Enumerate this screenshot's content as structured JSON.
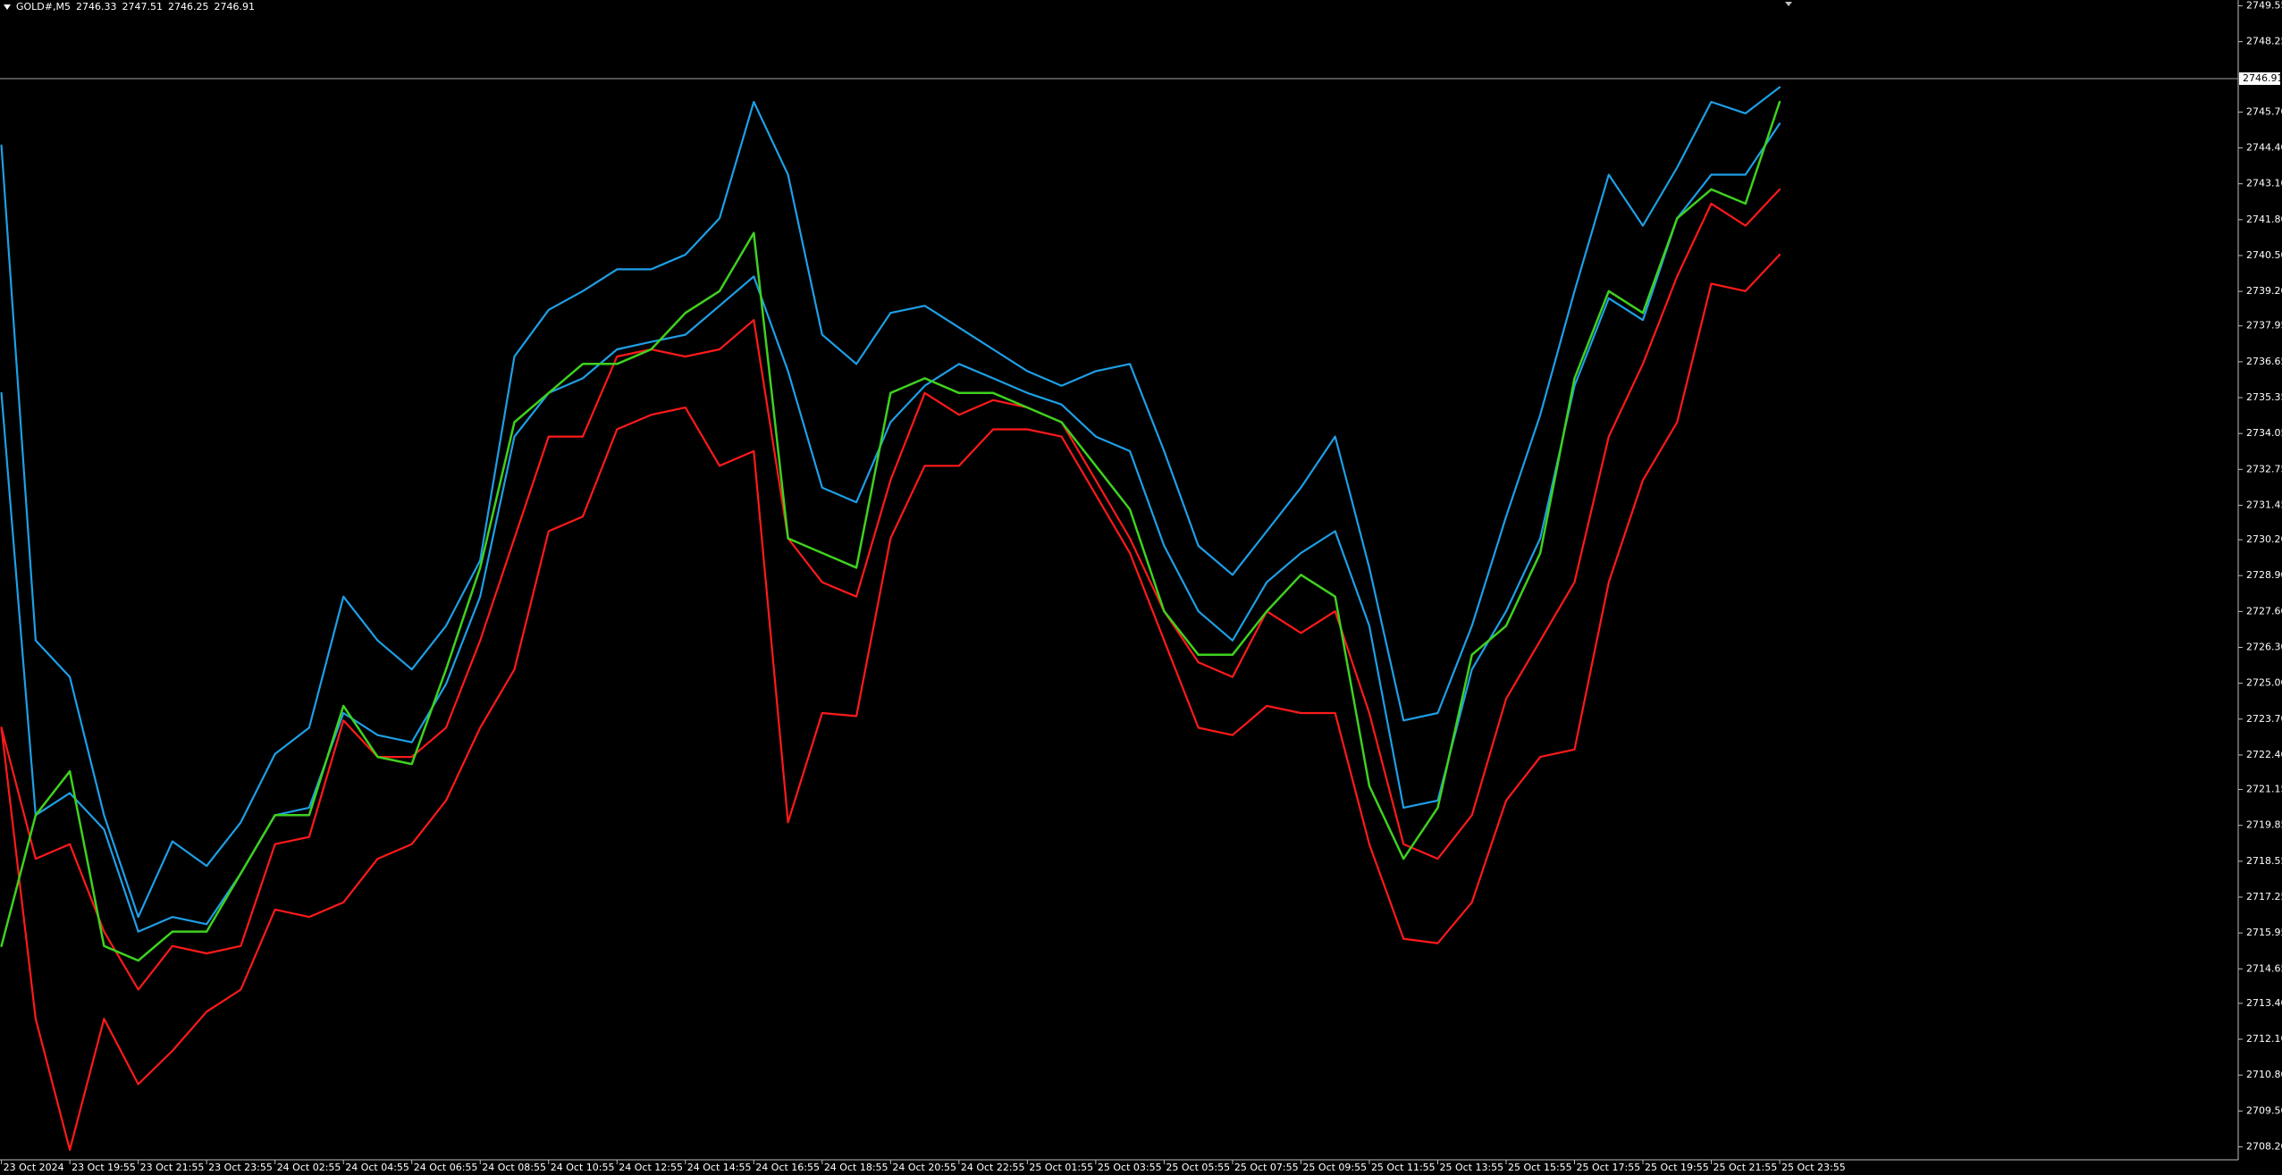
{
  "chart_data": {
    "type": "line",
    "symbol": "GOLD#,M5",
    "ohlc": [
      2746.33,
      2747.51,
      2746.25,
      2746.91
    ],
    "last_price": 2746.91,
    "categories": [
      "23 Oct 2024",
      null,
      "23 Oct 19:55",
      null,
      "23 Oct 21:55",
      null,
      "23 Oct 23:55",
      null,
      "24 Oct 02:55",
      null,
      "24 Oct 04:55",
      null,
      "24 Oct 06:55",
      null,
      "24 Oct 08:55",
      null,
      "24 Oct 10:55",
      null,
      "24 Oct 12:55",
      null,
      "24 Oct 14:55",
      null,
      "24 Oct 16:55",
      null,
      "24 Oct 18:55",
      null,
      "24 Oct 20:55",
      null,
      "24 Oct 22:55",
      null,
      "25 Oct 01:55",
      null,
      "25 Oct 03:55",
      null,
      "25 Oct 05:55",
      null,
      "25 Oct 07:55",
      null,
      "25 Oct 09:55",
      null,
      "25 Oct 11:55",
      null,
      "25 Oct 13:55",
      null,
      "25 Oct 15:55",
      null,
      "25 Oct 17:55",
      null,
      "25 Oct 19:55",
      null,
      "25 Oct 21:55",
      null,
      "25 Oct 23:55"
    ],
    "series": [
      {
        "color": "#1e9fe6",
        "values": [
          2744.49,
          2726.55,
          2725.23,
          2720.22,
          2716.53,
          2719.27,
          2718.38,
          2719.96,
          2722.44,
          2723.39,
          2728.14,
          2726.55,
          2725.5,
          2727.08,
          2729.45,
          2736.84,
          2738.53,
          2739.21,
          2740.0,
          2740.0,
          2740.53,
          2741.85,
          2746.07,
          2743.43,
          2737.63,
          2736.57,
          2738.42,
          2738.68,
          2737.89,
          2737.1,
          2736.31,
          2735.78,
          2736.31,
          2736.57,
          2733.41,
          2729.98,
          2728.93,
          2730.51,
          2732.09,
          2733.94,
          2729.19,
          2723.65,
          2723.92,
          2727.08,
          2731.04,
          2734.73,
          2739.21,
          2743.43,
          2741.58,
          2743.69,
          2746.07,
          2745.65,
          2746.6
        ]
      },
      {
        "color": "#1e9fe6",
        "values": [
          2735.52,
          2720.22,
          2721.02,
          2719.7,
          2716.0,
          2716.53,
          2716.27,
          2718.11,
          2720.22,
          2720.49,
          2723.92,
          2723.12,
          2722.86,
          2724.97,
          2728.14,
          2733.94,
          2735.52,
          2736.05,
          2737.1,
          2737.37,
          2737.63,
          2738.68,
          2739.74,
          2736.31,
          2732.09,
          2731.56,
          2734.46,
          2735.78,
          2736.57,
          2736.05,
          2735.52,
          2735.1,
          2733.94,
          2733.41,
          2729.98,
          2727.61,
          2726.55,
          2728.66,
          2729.72,
          2730.51,
          2727.08,
          2720.49,
          2720.75,
          2725.5,
          2727.61,
          2730.25,
          2735.78,
          2738.95,
          2738.16,
          2741.85,
          2743.43,
          2743.43,
          2745.28
        ]
      },
      {
        "color": "#ff1a1a",
        "values": [
          2723.39,
          2718.64,
          2719.17,
          2716.0,
          2713.9,
          2715.48,
          2715.21,
          2715.48,
          2719.17,
          2719.43,
          2723.65,
          2722.33,
          2722.33,
          2723.39,
          2726.55,
          2730.25,
          2733.94,
          2733.94,
          2736.84,
          2737.1,
          2736.84,
          2737.1,
          2738.16,
          2730.25,
          2728.66,
          2728.14,
          2732.36,
          2735.52,
          2734.73,
          2735.26,
          2734.99,
          2734.46,
          2732.36,
          2730.25,
          2727.61,
          2725.76,
          2725.23,
          2727.61,
          2726.82,
          2727.61,
          2723.92,
          2719.17,
          2718.64,
          2720.22,
          2724.44,
          2726.55,
          2728.66,
          2733.94,
          2736.57,
          2739.74,
          2742.38,
          2741.58,
          2742.9
        ]
      },
      {
        "color": "#ff1a1a",
        "values": [
          2723.39,
          2712.84,
          2708.09,
          2712.84,
          2710.47,
          2711.68,
          2713.1,
          2713.9,
          2716.8,
          2716.53,
          2717.06,
          2718.64,
          2719.17,
          2720.75,
          2723.39,
          2725.5,
          2730.51,
          2731.04,
          2734.2,
          2734.73,
          2734.99,
          2732.88,
          2733.41,
          2719.96,
          2723.92,
          2723.81,
          2730.25,
          2732.88,
          2732.88,
          2734.2,
          2734.2,
          2733.94,
          2731.83,
          2729.72,
          2726.55,
          2723.39,
          2723.12,
          2724.18,
          2723.92,
          2723.92,
          2719.17,
          2715.74,
          2715.58,
          2717.06,
          2720.75,
          2722.33,
          2722.6,
          2728.66,
          2732.36,
          2734.46,
          2739.48,
          2739.21,
          2740.53
        ]
      },
      {
        "color": "#3fd11f",
        "values": [
          2715.48,
          2720.22,
          2721.81,
          2715.48,
          2714.95,
          2716.0,
          2716.0,
          2718.11,
          2720.22,
          2720.22,
          2724.18,
          2722.33,
          2722.07,
          2725.5,
          2729.19,
          2734.46,
          2735.52,
          2736.57,
          2736.57,
          2737.1,
          2738.42,
          2739.21,
          2741.32,
          2730.25,
          2729.72,
          2729.19,
          2735.52,
          2736.05,
          2735.52,
          2735.52,
          2734.99,
          2734.46,
          2732.88,
          2731.3,
          2727.61,
          2726.03,
          2726.03,
          2727.61,
          2728.93,
          2728.14,
          2721.28,
          2718.64,
          2720.49,
          2726.03,
          2727.08,
          2729.72,
          2736.05,
          2739.21,
          2738.42,
          2741.85,
          2742.9,
          2742.38,
          2746.07
        ]
      }
    ],
    "ylim": [
      2707.73,
      2749.76
    ],
    "yticks": [
      2749.55,
      2748.25,
      {
        "value": 2745.7,
        "label": "2745.70"
      },
      {
        "value": 2744.4,
        "label": "2744.40"
      },
      {
        "value": 2743.1,
        "label": "2743.10"
      },
      {
        "value": 2741.8,
        "label": "2741.80"
      },
      {
        "value": 2740.5,
        "label": "2740.50"
      },
      {
        "value": 2739.2,
        "label": "2739.20"
      },
      2737.95,
      2736.65,
      2735.35,
      2734.05,
      2732.75,
      2731.45,
      {
        "value": 2730.2,
        "label": "2730.20"
      },
      {
        "value": 2728.9,
        "label": "2728.90"
      },
      {
        "value": 2727.6,
        "label": "2727.60"
      },
      {
        "value": 2726.3,
        "label": "2726.30"
      },
      {
        "value": 2725,
        "label": "2725.00"
      },
      {
        "value": 2723.7,
        "label": "2723.70"
      },
      {
        "value": 2722.4,
        "label": "2722.40"
      },
      2721.15,
      2719.85,
      2718.55,
      2717.25,
      2715.95,
      2714.65,
      {
        "value": 2713.4,
        "label": "2713.40"
      },
      {
        "value": 2712.1,
        "label": "2712.10"
      },
      {
        "value": 2710.8,
        "label": "2710.80"
      },
      {
        "value": 2709.5,
        "label": "2709.50"
      },
      {
        "value": 2708.2,
        "label": "2708.20"
      }
    ]
  }
}
